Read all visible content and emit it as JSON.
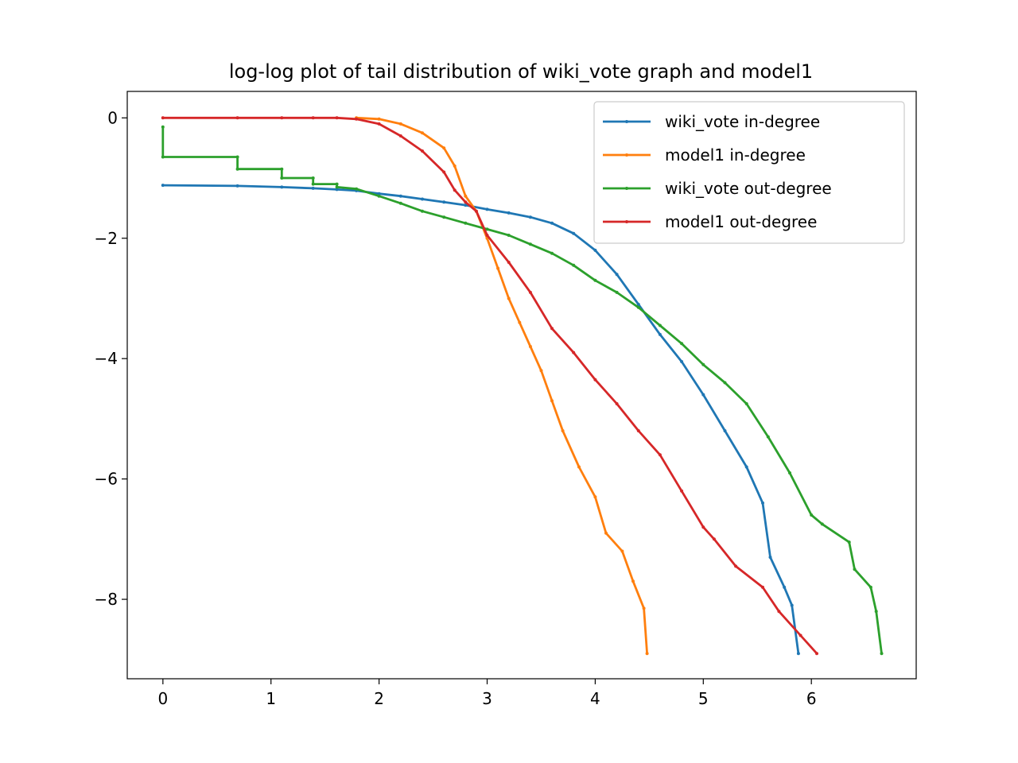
{
  "chart_data": {
    "type": "line",
    "title": "log-log plot of tail distribution of wiki_vote graph and model1",
    "xlabel": "",
    "ylabel": "",
    "xlim": [
      -0.33,
      6.97
    ],
    "ylim": [
      -9.32,
      0.44
    ],
    "xticks": [
      0,
      1,
      2,
      3,
      4,
      5,
      6
    ],
    "yticks": [
      0,
      -2,
      -4,
      -6,
      -8
    ],
    "x_tick_labels": [
      "0",
      "1",
      "2",
      "3",
      "4",
      "5",
      "6"
    ],
    "y_tick_labels": [
      "0",
      "−2",
      "−4",
      "−6",
      "−8"
    ],
    "grid": false,
    "legend_position": "top-right",
    "series": [
      {
        "name": "wiki_vote in-degree",
        "color": "#1f77b4",
        "points": [
          [
            0,
            -1.12
          ],
          [
            0.69,
            -1.13
          ],
          [
            1.1,
            -1.15
          ],
          [
            1.39,
            -1.17
          ],
          [
            1.61,
            -1.19
          ],
          [
            1.79,
            -1.21
          ],
          [
            2.0,
            -1.26
          ],
          [
            2.2,
            -1.3
          ],
          [
            2.4,
            -1.35
          ],
          [
            2.6,
            -1.4
          ],
          [
            2.8,
            -1.45
          ],
          [
            3.0,
            -1.52
          ],
          [
            3.2,
            -1.58
          ],
          [
            3.4,
            -1.65
          ],
          [
            3.6,
            -1.75
          ],
          [
            3.8,
            -1.92
          ],
          [
            4.0,
            -2.2
          ],
          [
            4.2,
            -2.6
          ],
          [
            4.4,
            -3.1
          ],
          [
            4.6,
            -3.6
          ],
          [
            4.8,
            -4.05
          ],
          [
            5.0,
            -4.6
          ],
          [
            5.2,
            -5.2
          ],
          [
            5.4,
            -5.8
          ],
          [
            5.55,
            -6.4
          ],
          [
            5.62,
            -7.3
          ],
          [
            5.75,
            -7.8
          ],
          [
            5.82,
            -8.1
          ],
          [
            5.88,
            -8.9
          ]
        ]
      },
      {
        "name": "model1 in-degree",
        "color": "#ff7f0e",
        "points": [
          [
            1.79,
            0
          ],
          [
            2.0,
            -0.02
          ],
          [
            2.2,
            -0.1
          ],
          [
            2.4,
            -0.25
          ],
          [
            2.6,
            -0.5
          ],
          [
            2.7,
            -0.8
          ],
          [
            2.8,
            -1.3
          ],
          [
            2.9,
            -1.55
          ],
          [
            3.0,
            -2.0
          ],
          [
            3.1,
            -2.5
          ],
          [
            3.2,
            -3.0
          ],
          [
            3.3,
            -3.4
          ],
          [
            3.4,
            -3.8
          ],
          [
            3.5,
            -4.2
          ],
          [
            3.6,
            -4.7
          ],
          [
            3.7,
            -5.2
          ],
          [
            3.85,
            -5.8
          ],
          [
            4.0,
            -6.3
          ],
          [
            4.1,
            -6.9
          ],
          [
            4.25,
            -7.2
          ],
          [
            4.35,
            -7.7
          ],
          [
            4.45,
            -8.15
          ],
          [
            4.48,
            -8.9
          ]
        ]
      },
      {
        "name": "wiki_vote out-degree",
        "color": "#2ca02c",
        "points": [
          [
            0,
            -0.15
          ],
          [
            0,
            -0.65
          ],
          [
            0.69,
            -0.65
          ],
          [
            0.69,
            -0.85
          ],
          [
            1.1,
            -0.85
          ],
          [
            1.1,
            -1.0
          ],
          [
            1.39,
            -1.0
          ],
          [
            1.39,
            -1.1
          ],
          [
            1.61,
            -1.1
          ],
          [
            1.61,
            -1.15
          ],
          [
            1.79,
            -1.18
          ],
          [
            2.0,
            -1.3
          ],
          [
            2.2,
            -1.42
          ],
          [
            2.4,
            -1.55
          ],
          [
            2.6,
            -1.65
          ],
          [
            2.8,
            -1.75
          ],
          [
            3.0,
            -1.85
          ],
          [
            3.2,
            -1.95
          ],
          [
            3.4,
            -2.1
          ],
          [
            3.6,
            -2.25
          ],
          [
            3.8,
            -2.45
          ],
          [
            4.0,
            -2.7
          ],
          [
            4.2,
            -2.9
          ],
          [
            4.4,
            -3.15
          ],
          [
            4.6,
            -3.45
          ],
          [
            4.8,
            -3.75
          ],
          [
            5.0,
            -4.1
          ],
          [
            5.2,
            -4.4
          ],
          [
            5.4,
            -4.75
          ],
          [
            5.6,
            -5.3
          ],
          [
            5.8,
            -5.9
          ],
          [
            6.0,
            -6.6
          ],
          [
            6.1,
            -6.75
          ],
          [
            6.35,
            -7.05
          ],
          [
            6.4,
            -7.5
          ],
          [
            6.55,
            -7.8
          ],
          [
            6.6,
            -8.2
          ],
          [
            6.65,
            -8.9
          ]
        ]
      },
      {
        "name": "model1 out-degree",
        "color": "#d62728",
        "points": [
          [
            0,
            0
          ],
          [
            0.69,
            0
          ],
          [
            1.1,
            0
          ],
          [
            1.39,
            0
          ],
          [
            1.61,
            0
          ],
          [
            1.79,
            -0.02
          ],
          [
            2.0,
            -0.1
          ],
          [
            2.2,
            -0.3
          ],
          [
            2.4,
            -0.55
          ],
          [
            2.6,
            -0.9
          ],
          [
            2.7,
            -1.2
          ],
          [
            2.8,
            -1.4
          ],
          [
            2.9,
            -1.55
          ],
          [
            3.0,
            -1.95
          ],
          [
            3.2,
            -2.4
          ],
          [
            3.4,
            -2.9
          ],
          [
            3.6,
            -3.5
          ],
          [
            3.8,
            -3.9
          ],
          [
            4.0,
            -4.35
          ],
          [
            4.2,
            -4.75
          ],
          [
            4.4,
            -5.2
          ],
          [
            4.6,
            -5.6
          ],
          [
            4.8,
            -6.2
          ],
          [
            5.0,
            -6.8
          ],
          [
            5.1,
            -7.0
          ],
          [
            5.3,
            -7.45
          ],
          [
            5.55,
            -7.8
          ],
          [
            5.7,
            -8.2
          ],
          [
            5.9,
            -8.6
          ],
          [
            6.05,
            -8.9
          ]
        ]
      }
    ]
  }
}
